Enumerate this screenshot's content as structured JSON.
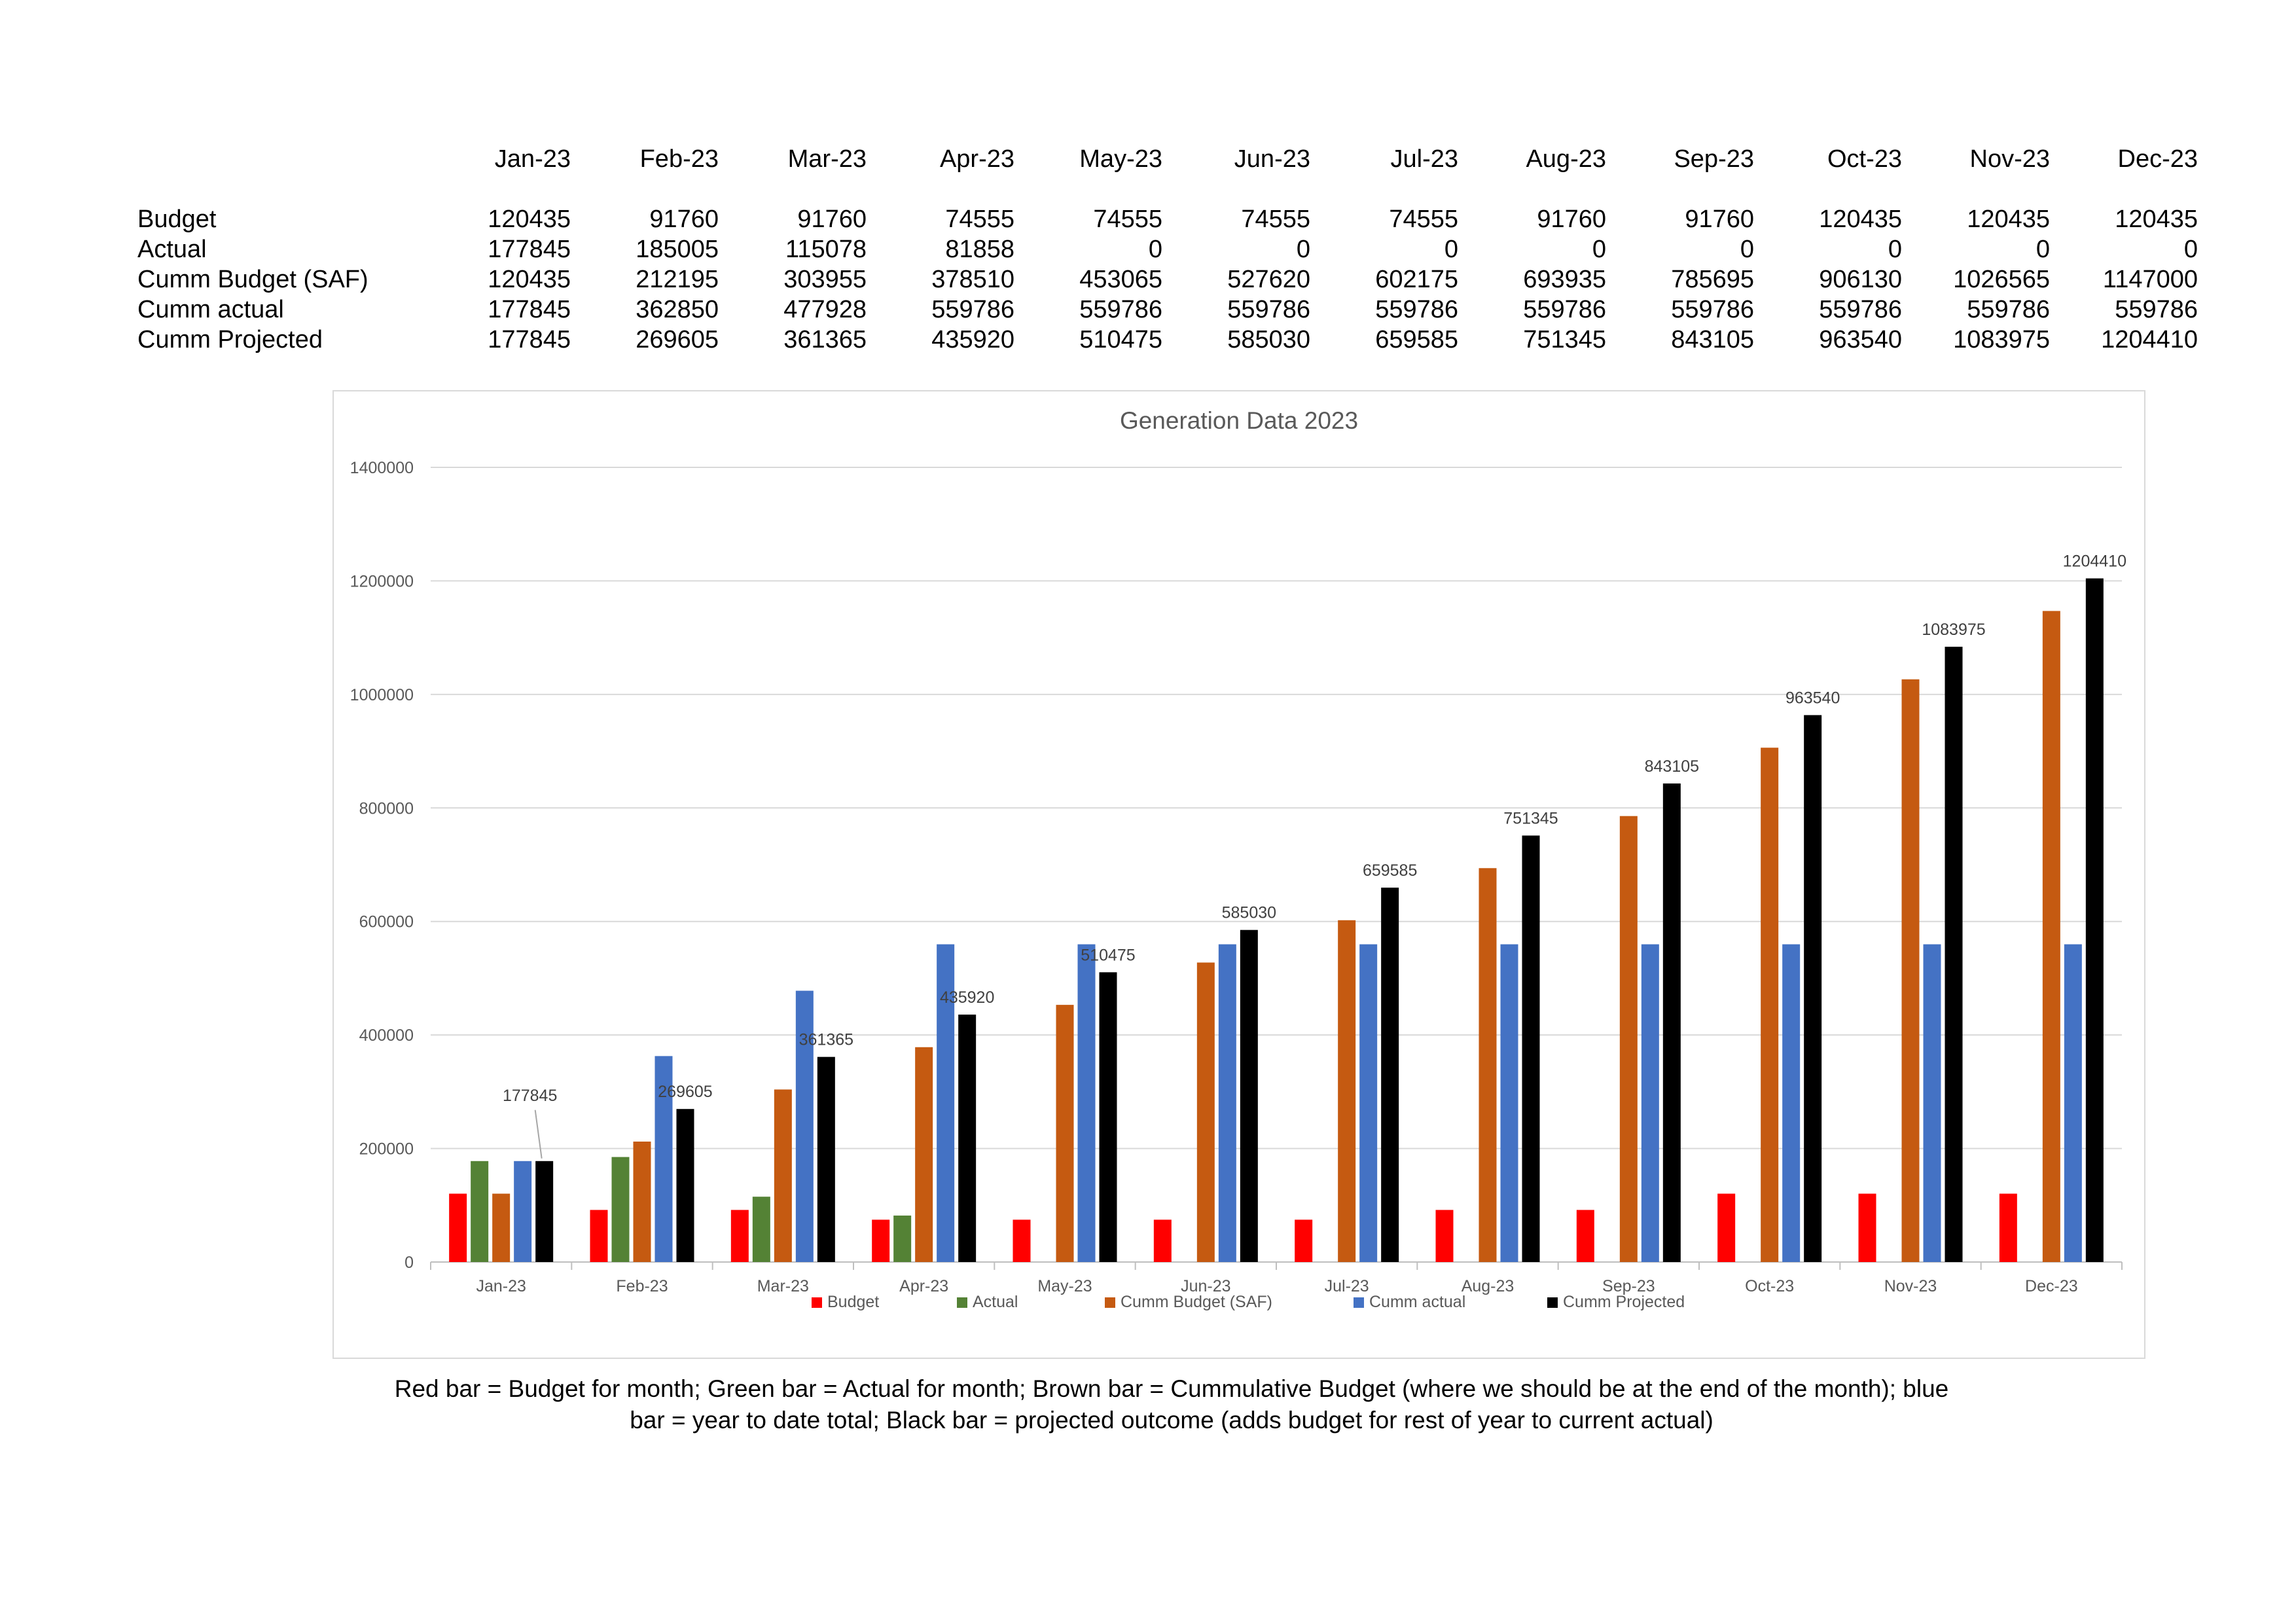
{
  "table": {
    "months": [
      "Jan-23",
      "Feb-23",
      "Mar-23",
      "Apr-23",
      "May-23",
      "Jun-23",
      "Jul-23",
      "Aug-23",
      "Sep-23",
      "Oct-23",
      "Nov-23",
      "Dec-23"
    ],
    "rows": [
      {
        "label": "Budget",
        "values": [
          "120435",
          "91760",
          "91760",
          "74555",
          "74555",
          "74555",
          "74555",
          "91760",
          "91760",
          "120435",
          "120435",
          "120435"
        ]
      },
      {
        "label": "Actual",
        "values": [
          "177845",
          "185005",
          "115078",
          "81858",
          "0",
          "0",
          "0",
          "0",
          "0",
          "0",
          "0",
          "0"
        ]
      },
      {
        "label": "Cumm  Budget (SAF)",
        "values": [
          "120435",
          "212195",
          "303955",
          "378510",
          "453065",
          "527620",
          "602175",
          "693935",
          "785695",
          "906130",
          "1026565",
          "1147000"
        ]
      },
      {
        "label": "Cumm actual",
        "values": [
          "177845",
          "362850",
          "477928",
          "559786",
          "559786",
          "559786",
          "559786",
          "559786",
          "559786",
          "559786",
          "559786",
          "559786"
        ]
      },
      {
        "label": "Cumm Projected",
        "values": [
          "177845",
          "269605",
          "361365",
          "435920",
          "510475",
          "585030",
          "659585",
          "751345",
          "843105",
          "963540",
          "1083975",
          "1204410"
        ]
      }
    ]
  },
  "chart_data": {
    "type": "bar",
    "title": "Generation Data 2023",
    "xlabel": "",
    "ylabel": "",
    "ylim": [
      0,
      1400000
    ],
    "yticks": [
      "0",
      "200000",
      "400000",
      "600000",
      "800000",
      "1000000",
      "1200000",
      "1400000"
    ],
    "grid": true,
    "legend_position": "bottom",
    "categories": [
      "Jan-23",
      "Feb-23",
      "Mar-23",
      "Apr-23",
      "May-23",
      "Jun-23",
      "Jul-23",
      "Aug-23",
      "Sep-23",
      "Oct-23",
      "Nov-23",
      "Dec-23"
    ],
    "series": [
      {
        "name": "Budget",
        "color": "#ff0000",
        "values": [
          120435,
          91760,
          91760,
          74555,
          74555,
          74555,
          74555,
          91760,
          91760,
          120435,
          120435,
          120435
        ]
      },
      {
        "name": "Actual",
        "color": "#548235",
        "values": [
          177845,
          185005,
          115078,
          81858,
          0,
          0,
          0,
          0,
          0,
          0,
          0,
          0
        ]
      },
      {
        "name": "Cumm  Budget (SAF)",
        "color": "#c55a11",
        "values": [
          120435,
          212195,
          303955,
          378510,
          453065,
          527620,
          602175,
          693935,
          785695,
          906130,
          1026565,
          1147000
        ]
      },
      {
        "name": "Cumm actual",
        "color": "#4472c4",
        "values": [
          177845,
          362850,
          477928,
          559786,
          559786,
          559786,
          559786,
          559786,
          559786,
          559786,
          559786,
          559786
        ]
      },
      {
        "name": "Cumm Projected",
        "color": "#000000",
        "values": [
          177845,
          269605,
          361365,
          435920,
          510475,
          585030,
          659585,
          751345,
          843105,
          963540,
          1083975,
          1204410
        ]
      }
    ],
    "data_labels": {
      "series": "Cumm Projected",
      "values": [
        "177845",
        "269605",
        "361365",
        "435920",
        "510475",
        "585030",
        "659585",
        "751345",
        "843105",
        "963540",
        "1083975",
        "1204410"
      ]
    }
  },
  "caption": {
    "line1": "Red bar = Budget for month; Green bar = Actual for month; Brown bar = Cummulative Budget (where we should be at the end of the month); blue",
    "line2": "bar = year to date total; Black bar = projected outcome (adds budget for rest of year to current actual)"
  }
}
